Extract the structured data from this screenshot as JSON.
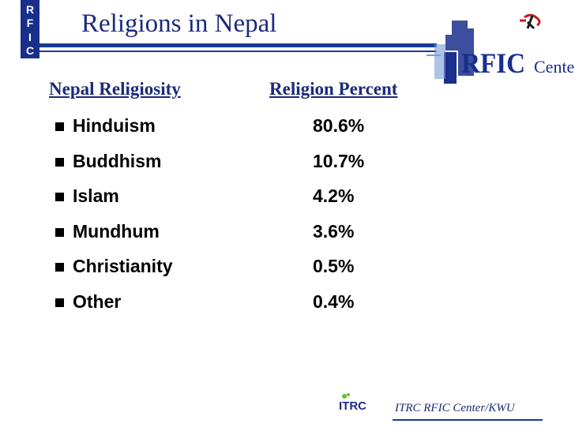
{
  "badge": {
    "letters": [
      "R",
      "F",
      "I",
      "C"
    ]
  },
  "title": "Religions in Nepal",
  "logo": {
    "text_main": "RFIC",
    "text_sub": "Center"
  },
  "table": {
    "col1_header": "Nepal Religiosity",
    "col2_header": "Religion Percent",
    "rows": [
      {
        "name": "Hinduism",
        "value": "80.6%"
      },
      {
        "name": "Buddhism",
        "value": "10.7%"
      },
      {
        "name": "Islam",
        "value": "4.2%"
      },
      {
        "name": "Mundhum",
        "value": "3.6%"
      },
      {
        "name": "Christianity",
        "value": "0.5%"
      },
      {
        "name": "Other",
        "value": "0.4%"
      }
    ]
  },
  "footer": {
    "logo_text": "ITRC",
    "text": "ITRC RFIC Center/KWU"
  },
  "colors": {
    "brand_blue": "#1a2f8c",
    "accent_red": "#c21d1d",
    "accent_green": "#6bbf2a"
  }
}
